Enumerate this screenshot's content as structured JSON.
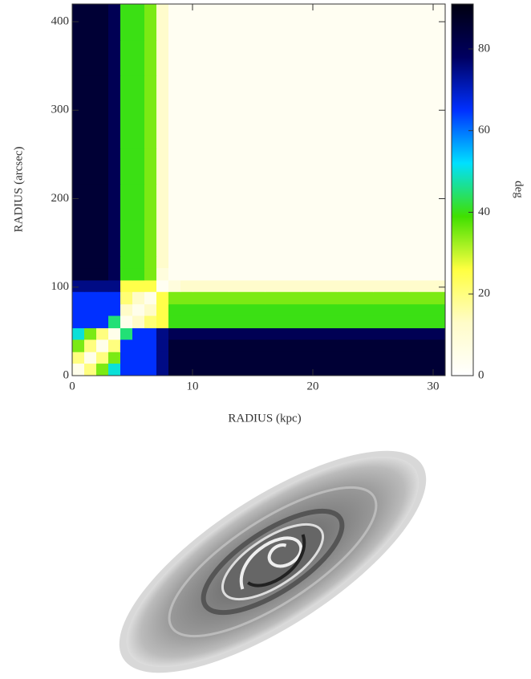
{
  "chart_data": {
    "type": "heatmap",
    "xlabel": "RADIUS (kpc)",
    "ylabel": "RADIUS (arcsec)",
    "colorbar_label": "deg",
    "x_bins": [
      0,
      1,
      2,
      3,
      4,
      5,
      6,
      7,
      8,
      9,
      10,
      13,
      16,
      19,
      22,
      25,
      28,
      31
    ],
    "y_bins": [
      0,
      14,
      27,
      41,
      54,
      68,
      81,
      95,
      108,
      122,
      135,
      176,
      217,
      257,
      298,
      339,
      379,
      420
    ],
    "z": [
      [
        5,
        20,
        35,
        50,
        65,
        65,
        65,
        75,
        85,
        85,
        85,
        85,
        85,
        85,
        85,
        85,
        85
      ],
      [
        20,
        5,
        20,
        35,
        65,
        65,
        65,
        75,
        85,
        85,
        85,
        85,
        85,
        85,
        85,
        85,
        85
      ],
      [
        35,
        20,
        5,
        20,
        65,
        65,
        65,
        75,
        85,
        85,
        85,
        85,
        85,
        85,
        85,
        85,
        85
      ],
      [
        50,
        35,
        20,
        5,
        45,
        65,
        65,
        75,
        80,
        80,
        80,
        80,
        80,
        80,
        80,
        80,
        80
      ],
      [
        65,
        65,
        65,
        45,
        5,
        13,
        21,
        25,
        40,
        40,
        40,
        40,
        40,
        40,
        40,
        40,
        40
      ],
      [
        65,
        65,
        65,
        65,
        13,
        5,
        13,
        25,
        40,
        40,
        40,
        40,
        40,
        40,
        40,
        40,
        40
      ],
      [
        65,
        65,
        65,
        65,
        21,
        13,
        5,
        25,
        35,
        35,
        35,
        35,
        35,
        35,
        35,
        35,
        35
      ],
      [
        75,
        75,
        75,
        75,
        25,
        25,
        25,
        3,
        8,
        12,
        12,
        12,
        12,
        12,
        12,
        12,
        12
      ],
      [
        85,
        85,
        85,
        80,
        40,
        40,
        35,
        8,
        3,
        3,
        3,
        3,
        3,
        3,
        3,
        3,
        3
      ],
      [
        85,
        85,
        85,
        80,
        40,
        40,
        35,
        12,
        3,
        3,
        3,
        3,
        3,
        3,
        3,
        3,
        3
      ],
      [
        85,
        85,
        85,
        80,
        40,
        40,
        35,
        12,
        3,
        3,
        3,
        3,
        3,
        3,
        3,
        3,
        3
      ],
      [
        85,
        85,
        85,
        80,
        40,
        40,
        35,
        12,
        3,
        3,
        3,
        3,
        3,
        3,
        3,
        3,
        3
      ],
      [
        85,
        85,
        85,
        80,
        40,
        40,
        35,
        12,
        3,
        3,
        3,
        3,
        3,
        3,
        3,
        3,
        3
      ],
      [
        85,
        85,
        85,
        80,
        40,
        40,
        35,
        12,
        3,
        3,
        3,
        3,
        3,
        3,
        3,
        3,
        3
      ],
      [
        85,
        85,
        85,
        80,
        40,
        40,
        35,
        12,
        3,
        3,
        3,
        3,
        3,
        3,
        3,
        3,
        3
      ],
      [
        85,
        85,
        85,
        80,
        40,
        40,
        35,
        12,
        3,
        3,
        3,
        3,
        3,
        3,
        3,
        3,
        3
      ],
      [
        85,
        85,
        85,
        80,
        40,
        40,
        35,
        12,
        3,
        3,
        3,
        3,
        3,
        3,
        3,
        3,
        3
      ]
    ],
    "xlim": [
      0,
      31
    ],
    "xticks": [
      0,
      10,
      20,
      30
    ],
    "ylim": [
      0,
      420
    ],
    "yticks": [
      0,
      100,
      200,
      300,
      400
    ],
    "clim": [
      0,
      91
    ],
    "cticks": [
      0,
      20,
      40,
      60,
      80
    ],
    "colormap": [
      "#ffffff",
      "#fffcc8",
      "#ffff40",
      "#40e000",
      "#00e0ff",
      "#0030ff",
      "#000060",
      "#000010"
    ]
  }
}
